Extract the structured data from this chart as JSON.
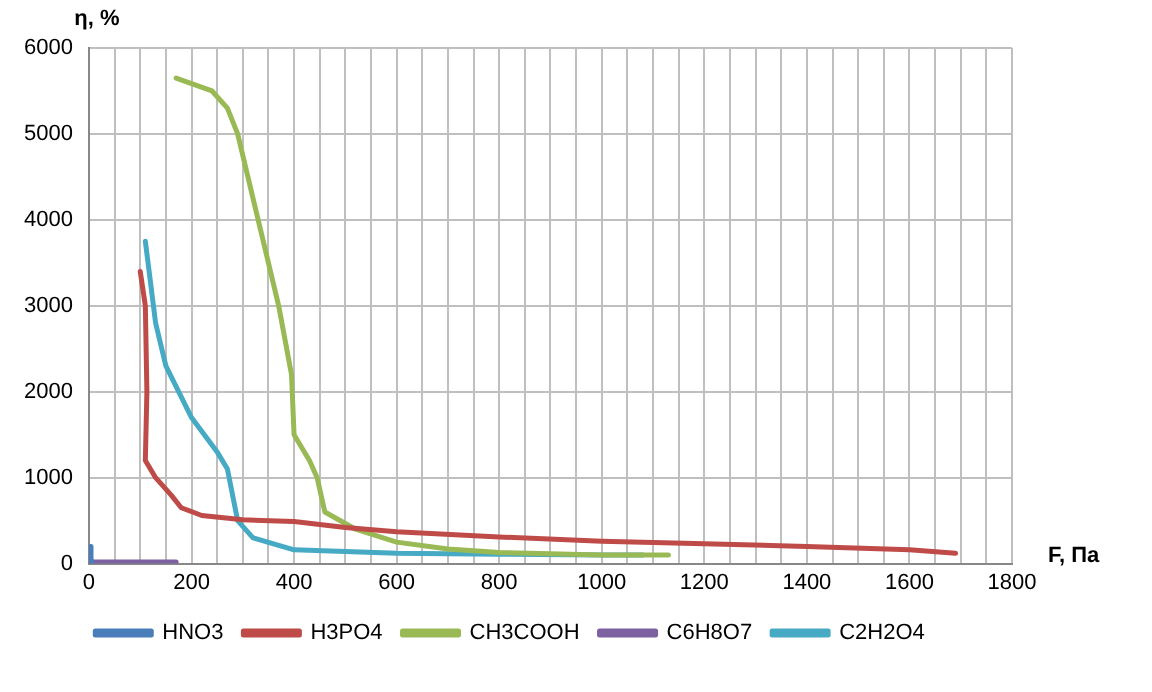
{
  "chart_data": {
    "type": "line",
    "xlabel": "F, Па",
    "ylabel": "η, %",
    "xlim": [
      0,
      1800
    ],
    "ylim": [
      0,
      6000
    ],
    "xticks": [
      0,
      {
        "value": 50,
        "label": null
      },
      {
        "value": 100,
        "label": null
      },
      {
        "value": 150,
        "label": null
      },
      200,
      {
        "value": 250,
        "label": null
      },
      {
        "value": 300,
        "label": null
      },
      {
        "value": 350,
        "label": null
      },
      400,
      {
        "value": 450,
        "label": null
      },
      {
        "value": 500,
        "label": null
      },
      {
        "value": 550,
        "label": null
      },
      600,
      {
        "value": 650,
        "label": null
      },
      {
        "value": 700,
        "label": null
      },
      {
        "value": 750,
        "label": null
      },
      800,
      {
        "value": 850,
        "label": null
      },
      {
        "value": 900,
        "label": null
      },
      {
        "value": 950,
        "label": null
      },
      1000,
      {
        "value": 1050,
        "label": null
      },
      {
        "value": 1100,
        "label": null
      },
      {
        "value": 1150,
        "label": null
      },
      1200,
      {
        "value": 1250,
        "label": null
      },
      {
        "value": 1300,
        "label": null
      },
      {
        "value": 1350,
        "label": null
      },
      1400,
      {
        "value": 1450,
        "label": null
      },
      {
        "value": 1500,
        "label": null
      },
      {
        "value": 1550,
        "label": null
      },
      1600,
      {
        "value": 1650,
        "label": null
      },
      {
        "value": 1700,
        "label": null
      },
      {
        "value": 1750,
        "label": null
      },
      1800
    ],
    "yticks": [
      0,
      1000,
      2000,
      3000,
      4000,
      5000,
      6000
    ],
    "grid": true,
    "legend": "bottom",
    "marker": "none",
    "line_style": "solid",
    "series": [
      {
        "name": "HNO3",
        "color": "#4a7ebb",
        "x": [
          3,
          4,
          6
        ],
        "values": [
          200,
          60,
          10
        ]
      },
      {
        "name": "H3PO4",
        "color": "#be4b48",
        "x": [
          100,
          110,
          113,
          110,
          130,
          160,
          180,
          220,
          300,
          400,
          500,
          600,
          800,
          1000,
          1200,
          1400,
          1600,
          1690
        ],
        "values": [
          3400,
          3000,
          2000,
          1200,
          1000,
          800,
          650,
          560,
          510,
          490,
          420,
          370,
          310,
          260,
          230,
          200,
          160,
          120
        ]
      },
      {
        "name": "CH3COOH",
        "color": "#98b954",
        "x": [
          170,
          240,
          270,
          290,
          330,
          370,
          395,
          400,
          430,
          445,
          460,
          520,
          600,
          700,
          800,
          1000,
          1130
        ],
        "values": [
          5650,
          5500,
          5300,
          5000,
          4000,
          3000,
          2200,
          1500,
          1200,
          1000,
          600,
          400,
          250,
          170,
          130,
          100,
          100
        ]
      },
      {
        "name": "C6H8O7",
        "color": "#7d60a0",
        "x": [
          0,
          80,
          170
        ],
        "values": [
          20,
          20,
          20
        ]
      },
      {
        "name": "C2H2O4",
        "color": "#46aac5",
        "x": [
          110,
          130,
          150,
          200,
          250,
          270,
          290,
          320,
          400,
          600,
          800,
          1000,
          1080
        ],
        "values": [
          3750,
          2800,
          2300,
          1700,
          1300,
          1100,
          500,
          300,
          160,
          120,
          110,
          100,
          100
        ]
      }
    ]
  }
}
